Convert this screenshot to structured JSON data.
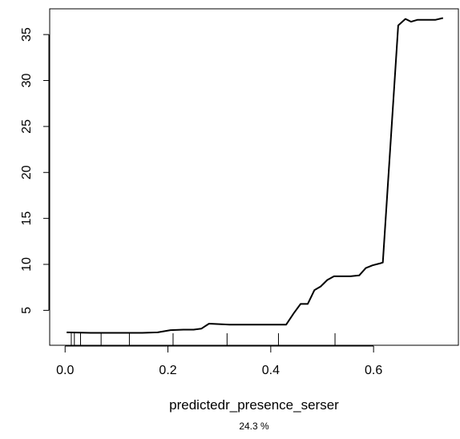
{
  "chart_data": {
    "type": "line",
    "title": "",
    "xlabel": "predictedr_presence_serser",
    "xlabel_sub": "24.3 %",
    "ylabel": "",
    "xlim": [
      -0.03,
      0.765
    ],
    "ylim": [
      1.2,
      37.8
    ],
    "x_ticks": [
      0.0,
      0.2,
      0.4,
      0.6
    ],
    "x_tick_labels": [
      "0.0",
      "0.2",
      "0.4",
      "0.6"
    ],
    "y_ticks": [
      5,
      10,
      15,
      20,
      25,
      30,
      35
    ],
    "y_tick_labels": [
      "5",
      "10",
      "15",
      "20",
      "25",
      "30",
      "35"
    ],
    "y_tick_label_rotation": -90,
    "grid": false,
    "line_color": "#000000",
    "series": [
      {
        "x": [
          0.003,
          0.05,
          0.1,
          0.15,
          0.18,
          0.205,
          0.23,
          0.25,
          0.265,
          0.28,
          0.3,
          0.32,
          0.35,
          0.38,
          0.41,
          0.43,
          0.445,
          0.458,
          0.472,
          0.485,
          0.497,
          0.51,
          0.523,
          0.537,
          0.555,
          0.572,
          0.585,
          0.598,
          0.612,
          0.618,
          0.648,
          0.662,
          0.673,
          0.685,
          0.7,
          0.72,
          0.735
        ],
        "y": [
          2.6,
          2.55,
          2.55,
          2.55,
          2.6,
          2.85,
          2.9,
          2.9,
          3.0,
          3.55,
          3.5,
          3.45,
          3.45,
          3.45,
          3.45,
          3.45,
          4.7,
          5.7,
          5.7,
          7.2,
          7.6,
          8.3,
          8.7,
          8.7,
          8.7,
          8.8,
          9.6,
          9.9,
          10.1,
          10.2,
          36.0,
          36.7,
          36.4,
          36.6,
          36.6,
          36.6,
          36.8
        ]
      }
    ],
    "rug_x": [
      0.012,
      0.018,
      0.03,
      0.07,
      0.125,
      0.21,
      0.315,
      0.415,
      0.525
    ]
  }
}
